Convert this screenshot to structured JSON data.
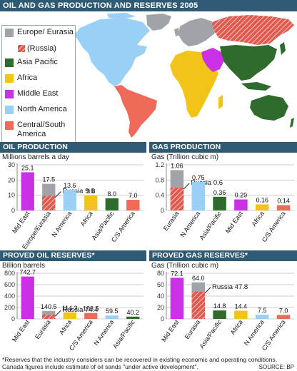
{
  "title": "OIL AND GAS PRODUCTION AND RESERVES 2005",
  "colors": {
    "europe": "#a0a4a8",
    "asia_pacific": "#2e6b2c",
    "africa": "#f2c318",
    "middle_east": "#cc30e6",
    "north_america": "#9ad0f5",
    "central_south_america": "#f06a5a",
    "russia_hatch": "#e05a50",
    "header_bg": "#2f5a73"
  },
  "legend": {
    "items": [
      {
        "label": "Europe/ Eurasia",
        "color": "#a0a4a8"
      },
      {
        "label": "Asia Pacific",
        "color": "#2e6b2c"
      },
      {
        "label": "Africa",
        "color": "#f2c318"
      },
      {
        "label": "Middle East",
        "color": "#cc30e6"
      },
      {
        "label": "North America",
        "color": "#9ad0f5"
      },
      {
        "label": "Central/South America",
        "color": "#f06a5a"
      }
    ],
    "russia_label": "(Russia)"
  },
  "chart_data": [
    {
      "type": "bar",
      "title": "OIL PRODUCTION",
      "subtitle": "Millions barrels a day",
      "categories": [
        "Mid East",
        "Europe/Eurasia",
        "N America",
        "Africa",
        "Asia/Pacific",
        "C/S America"
      ],
      "values": [
        25.1,
        17.5,
        13.6,
        9.8,
        8.0,
        7.0
      ],
      "value_labels": [
        "25.1",
        "17.5",
        "13.6",
        "9.8",
        "8.0",
        "7.0"
      ],
      "colors": [
        "#cc30e6",
        "#a0a4a8",
        "#9ad0f5",
        "#f2c318",
        "#2e6b2c",
        "#f06a5a"
      ],
      "russia": {
        "category": "Europe/Eurasia",
        "value": 9.6,
        "label": "Russia 9.6"
      },
      "ylim": [
        0,
        30
      ],
      "yticks": [
        "0",
        "10",
        "20",
        "30"
      ],
      "ytick_values": [
        0,
        10,
        20,
        30
      ]
    },
    {
      "type": "bar",
      "title": "GAS PRODUCTION",
      "subtitle": "Gas (Trillion cubic m)",
      "categories": [
        "Eurasia",
        "N America",
        "Asia/Pacific",
        "Mid East",
        "Africa",
        "C/S America"
      ],
      "values": [
        1.06,
        0.75,
        0.36,
        0.29,
        0.16,
        0.14
      ],
      "value_labels": [
        "1.06",
        "0.75",
        "0.36",
        "0.29",
        "0.16",
        "0.14"
      ],
      "colors": [
        "#a0a4a8",
        "#9ad0f5",
        "#2e6b2c",
        "#cc30e6",
        "#f2c318",
        "#f06a5a"
      ],
      "russia": {
        "category": "Eurasia",
        "value": 0.6,
        "label": "Russia 0.6"
      },
      "ylim": [
        0,
        1.2
      ],
      "yticks": [
        "0",
        "0.4",
        "0.8",
        "1.2"
      ],
      "ytick_values": [
        0,
        0.4,
        0.8,
        1.2
      ]
    },
    {
      "type": "bar",
      "title": "PROVED OIL RESERVES*",
      "subtitle": "Billion barrels",
      "categories": [
        "Mid East",
        "Eurasia",
        "Africa",
        "C/S America",
        "N America",
        "Asia/Pacific"
      ],
      "values": [
        742.7,
        140.5,
        114.3,
        103.5,
        59.5,
        40.2
      ],
      "value_labels": [
        "742.7",
        "140.5",
        "114.3",
        "103.5",
        "59.5",
        "40.2"
      ],
      "colors": [
        "#cc30e6",
        "#a0a4a8",
        "#f2c318",
        "#f06a5a",
        "#9ad0f5",
        "#2e6b2c"
      ],
      "russia": {
        "category": "Eurasia",
        "value": 74.4,
        "label": "Russia 74.4"
      },
      "ylim": [
        0,
        800
      ],
      "yticks": [
        "0",
        "200",
        "400",
        "600",
        "800"
      ],
      "ytick_values": [
        0,
        200,
        400,
        600,
        800
      ]
    },
    {
      "type": "bar",
      "title": "PROVED GAS RESERVES*",
      "subtitle": "Gas (Trillion cubic m)",
      "categories": [
        "Mid East",
        "Eurasia",
        "Asia/Pacific",
        "Africa",
        "N America",
        "C/S America"
      ],
      "values": [
        72.1,
        64.0,
        14.8,
        14.4,
        7.5,
        7.0
      ],
      "value_labels": [
        "72.1",
        "64.0",
        "14.8",
        "14.4",
        "7.5",
        "7.0"
      ],
      "colors": [
        "#cc30e6",
        "#a0a4a8",
        "#2e6b2c",
        "#f2c318",
        "#9ad0f5",
        "#f06a5a"
      ],
      "russia": {
        "category": "Eurasia",
        "value": 47.8,
        "label": "Russia 47.8"
      },
      "ylim": [
        0,
        80
      ],
      "yticks": [
        "0",
        "20",
        "40",
        "60",
        "80"
      ],
      "ytick_values": [
        0,
        20,
        40,
        60,
        80
      ]
    }
  ],
  "footnote": "*Reserves that the industry considers can be recovered in existing economic and operating conditions. Canada figures include estimate of oil sands \"under active development\".",
  "source": "SOURCE: BP"
}
